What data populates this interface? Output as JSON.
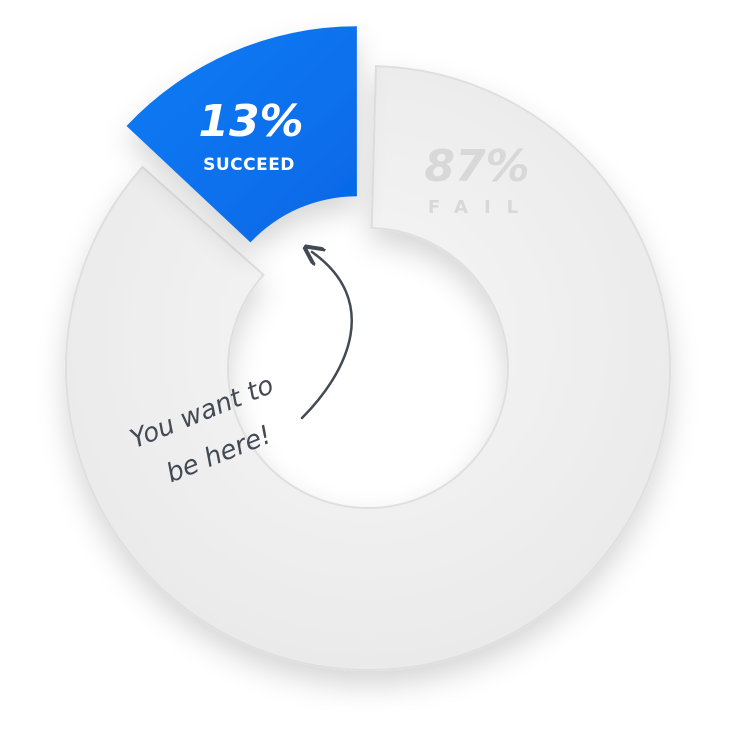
{
  "chart_data": {
    "type": "pie",
    "categories": [
      "SUCCEED",
      "FAIL"
    ],
    "values": [
      13,
      87
    ],
    "labels": [
      {
        "value": "13%",
        "name": "SUCCEED"
      },
      {
        "value": "87%",
        "name": "FAIL"
      }
    ],
    "colors": {
      "succeed": "#0a73ef",
      "fail": "#efefef",
      "fail_text": "#d6d6d6"
    }
  },
  "annotation": {
    "line1": "You want to",
    "line2": "be here!"
  }
}
